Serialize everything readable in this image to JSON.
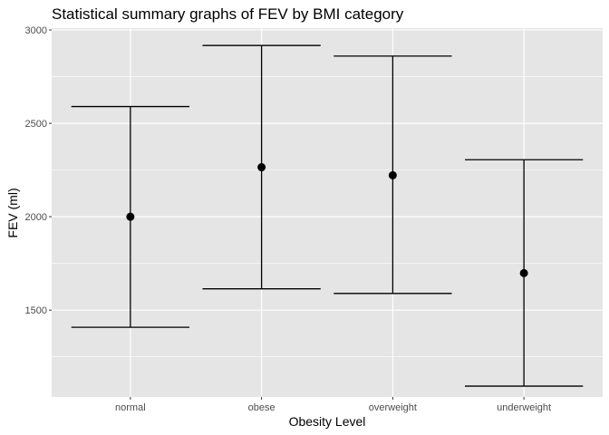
{
  "chart_data": {
    "type": "errorbar",
    "title": "Statistical summary graphs of FEV by BMI category",
    "xlabel": "Obesity Level",
    "ylabel": "FEV (ml)",
    "categories": [
      "normal",
      "obese",
      "overweight",
      "underweight"
    ],
    "mean": [
      2000,
      2265,
      2222,
      1698
    ],
    "lower": [
      1408,
      1614,
      1589,
      1093
    ],
    "upper": [
      2590,
      2917,
      2860,
      2305
    ],
    "ylim": [
      1035,
      3010
    ],
    "yticks": [
      1500,
      2000,
      2500,
      3000
    ],
    "grid": true,
    "legend": "none",
    "colors": {
      "panel": "#e5e5e5",
      "grid_major": "#ffffff",
      "mark": "#000000",
      "tick_text": "#4d4d4d"
    }
  }
}
